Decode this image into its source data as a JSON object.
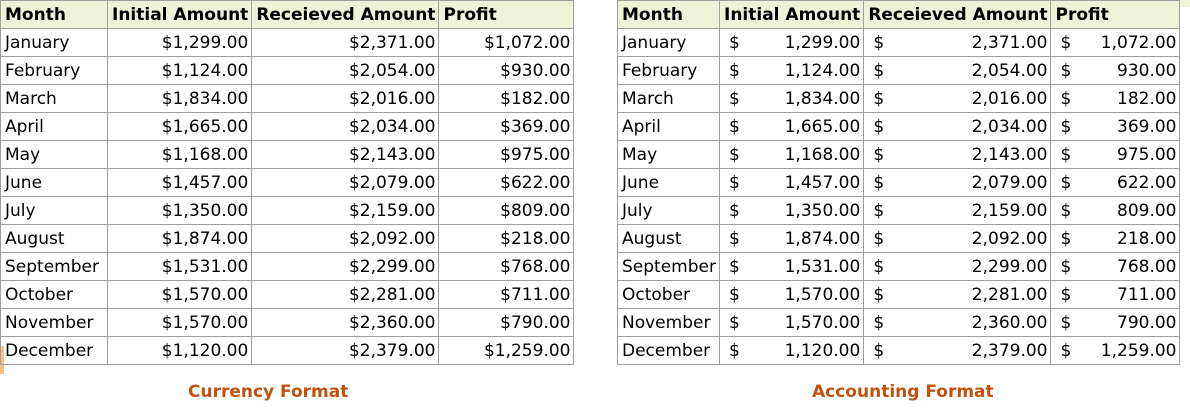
{
  "headers": [
    "Month",
    "Initial Amount",
    "Receieved Amount",
    "Profit"
  ],
  "currency_symbol": "$",
  "rows": [
    {
      "month": "January",
      "initial": "$1,299.00",
      "received": "$2,371.00",
      "profit": "$1,072.00",
      "a_initial": "1,299.00",
      "a_received": "2,371.00",
      "a_profit": "1,072.00"
    },
    {
      "month": "February",
      "initial": "$1,124.00",
      "received": "$2,054.00",
      "profit": "$930.00",
      "a_initial": "1,124.00",
      "a_received": "2,054.00",
      "a_profit": "930.00"
    },
    {
      "month": "March",
      "initial": "$1,834.00",
      "received": "$2,016.00",
      "profit": "$182.00",
      "a_initial": "1,834.00",
      "a_received": "2,016.00",
      "a_profit": "182.00"
    },
    {
      "month": "April",
      "initial": "$1,665.00",
      "received": "$2,034.00",
      "profit": "$369.00",
      "a_initial": "1,665.00",
      "a_received": "2,034.00",
      "a_profit": "369.00"
    },
    {
      "month": "May",
      "initial": "$1,168.00",
      "received": "$2,143.00",
      "profit": "$975.00",
      "a_initial": "1,168.00",
      "a_received": "2,143.00",
      "a_profit": "975.00"
    },
    {
      "month": "June",
      "initial": "$1,457.00",
      "received": "$2,079.00",
      "profit": "$622.00",
      "a_initial": "1,457.00",
      "a_received": "2,079.00",
      "a_profit": "622.00"
    },
    {
      "month": "July",
      "initial": "$1,350.00",
      "received": "$2,159.00",
      "profit": "$809.00",
      "a_initial": "1,350.00",
      "a_received": "2,159.00",
      "a_profit": "809.00"
    },
    {
      "month": "August",
      "initial": "$1,874.00",
      "received": "$2,092.00",
      "profit": "$218.00",
      "a_initial": "1,874.00",
      "a_received": "2,092.00",
      "a_profit": "218.00"
    },
    {
      "month": "September",
      "initial": "$1,531.00",
      "received": "$2,299.00",
      "profit": "$768.00",
      "a_initial": "1,531.00",
      "a_received": "2,299.00",
      "a_profit": "768.00"
    },
    {
      "month": "October",
      "initial": "$1,570.00",
      "received": "$2,281.00",
      "profit": "$711.00",
      "a_initial": "1,570.00",
      "a_received": "2,281.00",
      "a_profit": "711.00"
    },
    {
      "month": "November",
      "initial": "$1,570.00",
      "received": "$2,360.00",
      "profit": "$790.00",
      "a_initial": "1,570.00",
      "a_received": "2,360.00",
      "a_profit": "790.00"
    },
    {
      "month": "December",
      "initial": "$1,120.00",
      "received": "$2,379.00",
      "profit": "$1,259.00",
      "a_initial": "1,120.00",
      "a_received": "2,379.00",
      "a_profit": "1,259.00"
    }
  ],
  "captions": {
    "left": "Currency Format",
    "right": "Accounting Format"
  },
  "colors": {
    "header_bg": "#eef2d6",
    "caption": "#c0510f",
    "grid": "#9e9e9e"
  }
}
